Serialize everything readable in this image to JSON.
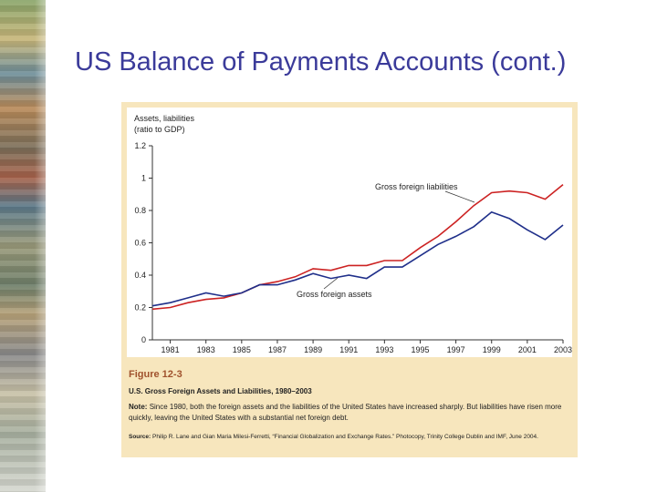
{
  "slide": {
    "title": "US Balance of Payments Accounts (cont.)"
  },
  "figure": {
    "number": "Figure 12-3",
    "title": "U.S. Gross Foreign Assets and Liabilities, 1980–2003",
    "note_label": "Note:",
    "note_text": "Since 1980, both the foreign assets and the liabilities of the United States have increased sharply. But liabilities have risen more quickly, leaving the United States with a substantial net foreign debt.",
    "source_label": "Source:",
    "source_text": "Philip R. Lane and Gian Maria Milesi-Ferretti, “Financial Globalization and Exchange Rates.” Photocopy, Trinity College Dublin and IMF, June 2004."
  },
  "chart_data": {
    "type": "line",
    "ylabel": "Assets, liabilities\n(ratio to GDP)",
    "xlabel": "",
    "xlim": [
      1980,
      2003
    ],
    "ylim": [
      0,
      1.2
    ],
    "x_ticks": [
      "1981",
      "1983",
      "1985",
      "1987",
      "1989",
      "1991",
      "1993",
      "1995",
      "1997",
      "1999",
      "2001",
      "2003"
    ],
    "y_ticks": [
      "0",
      "0.2",
      "0.4",
      "0.6",
      "0.8",
      "1",
      "1.2"
    ],
    "grid": false,
    "x": [
      1980,
      1981,
      1982,
      1983,
      1984,
      1985,
      1986,
      1987,
      1988,
      1989,
      1990,
      1991,
      1992,
      1993,
      1994,
      1995,
      1996,
      1997,
      1998,
      1999,
      2000,
      2001,
      2002,
      2003
    ],
    "series": [
      {
        "name": "Gross foreign liabilities",
        "color": "#cc2222",
        "values": [
          0.19,
          0.2,
          0.23,
          0.25,
          0.26,
          0.29,
          0.34,
          0.36,
          0.39,
          0.44,
          0.43,
          0.46,
          0.46,
          0.49,
          0.49,
          0.57,
          0.64,
          0.73,
          0.83,
          0.91,
          0.92,
          0.91,
          0.87,
          0.96
        ]
      },
      {
        "name": "Gross foreign assets",
        "color": "#1f2f8a",
        "values": [
          0.21,
          0.23,
          0.26,
          0.29,
          0.27,
          0.29,
          0.34,
          0.34,
          0.37,
          0.41,
          0.38,
          0.4,
          0.38,
          0.45,
          0.45,
          0.52,
          0.59,
          0.64,
          0.7,
          0.79,
          0.75,
          0.68,
          0.62,
          0.71
        ]
      }
    ],
    "annotations": [
      "Gross foreign liabilities",
      "Gross foreign assets"
    ]
  }
}
